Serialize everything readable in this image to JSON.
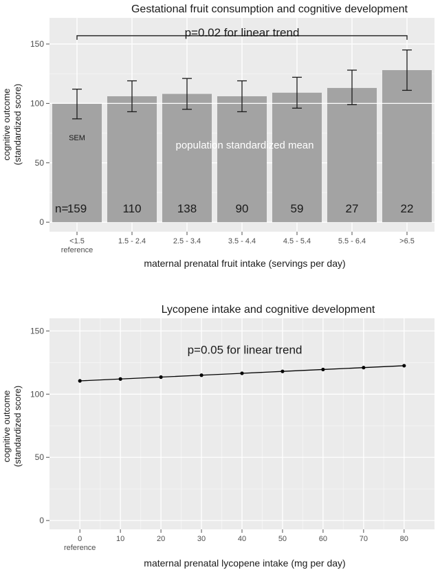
{
  "chart_data": [
    {
      "type": "bar",
      "title": "Gestational fruit consumption and cognitive development",
      "xlabel": "maternal prenatal fruit intake  (servings per day)",
      "ylabel_lines": [
        "cognitive outcome",
        "(standardized score)"
      ],
      "ylim": [
        -8,
        172
      ],
      "yticks": [
        0,
        50,
        100,
        150
      ],
      "categories": [
        {
          "label": "<1.5",
          "sublabel": "reference"
        },
        {
          "label": "1.5 - 2.4",
          "sublabel": ""
        },
        {
          "label": "2.5 - 3.4",
          "sublabel": ""
        },
        {
          "label": "3.5 - 4.4",
          "sublabel": ""
        },
        {
          "label": "4.5 - 5.4",
          "sublabel": ""
        },
        {
          "label": "5.5 - 6.4",
          "sublabel": ""
        },
        {
          "label": ">6.5",
          "sublabel": ""
        }
      ],
      "values": [
        100,
        106,
        108,
        106,
        109,
        113,
        128
      ],
      "error_low": [
        87,
        93,
        95,
        93,
        96,
        99,
        111
      ],
      "error_high": [
        112,
        119,
        121,
        119,
        122,
        128,
        145
      ],
      "n_label": "n=",
      "n_values": [
        "159",
        "110",
        "138",
        "90",
        "59",
        "27",
        "22"
      ],
      "reference_line": {
        "value": 100,
        "label": "population standardized mean"
      },
      "sem_label": "SEM",
      "trend_label": "p=0.02 for linear trend",
      "trend_bracket_y": 157
    },
    {
      "type": "line",
      "title": "Lycopene intake and cognitive development",
      "xlabel": "maternal prenatal lycopene intake  (mg per day)",
      "ylabel_lines": [
        "cognitive outcome",
        "(standardized score)"
      ],
      "xlim": [
        -7.5,
        87.5
      ],
      "ylim": [
        -7,
        160
      ],
      "xticks": [
        0,
        10,
        20,
        30,
        40,
        50,
        60,
        70,
        80
      ],
      "x_reference_label": "reference",
      "yticks": [
        0,
        50,
        100,
        150
      ],
      "x": [
        0,
        10,
        20,
        30,
        40,
        50,
        60,
        70,
        80
      ],
      "y": [
        110.5,
        112.0,
        113.5,
        115.0,
        116.5,
        118.0,
        119.5,
        121.0,
        122.5
      ],
      "trend_label": "p=0.05 for linear trend",
      "trend_label_y": 132
    }
  ],
  "colors": {
    "panel": "#ebebeb",
    "grid_major": "#ffffff",
    "grid_minor": "#f4f4f4",
    "bar": "#a3a3a3",
    "text": "#1a1a1a",
    "axis_text": "#4d4d4d",
    "line": "#000000"
  }
}
